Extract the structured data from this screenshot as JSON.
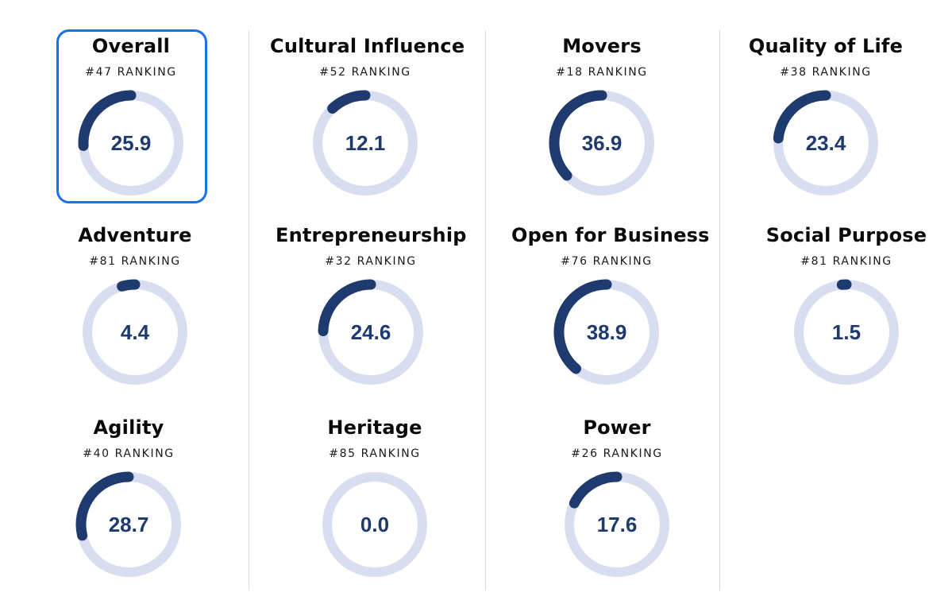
{
  "colors": {
    "track": "#d8deef",
    "arc": "#1e3a6e",
    "value_text": "#1e3a6e",
    "selected_border": "#1d6fe8",
    "divider": "#d9d9d9"
  },
  "cards": [
    {
      "title": "Overall",
      "rank": "#47 RANKING",
      "value": "25.9",
      "fill": 0.259,
      "selected": true
    },
    {
      "title": "Cultural Influence",
      "rank": "#52 RANKING",
      "value": "12.1",
      "fill": 0.121
    },
    {
      "title": "Movers",
      "rank": "#18 RANKING",
      "value": "36.9",
      "fill": 0.369
    },
    {
      "title": "Quality of Life",
      "rank": "#38 RANKING",
      "value": "23.4",
      "fill": 0.234
    },
    {
      "title": "Adventure",
      "rank": "#81 RANKING",
      "value": "4.4",
      "fill": 0.044
    },
    {
      "title": "Entrepreneurship",
      "rank": "#32 RANKING",
      "value": "24.6",
      "fill": 0.246
    },
    {
      "title": "Open for Business",
      "rank": "#76 RANKING",
      "value": "38.9",
      "fill": 0.389
    },
    {
      "title": "Social Purpose",
      "rank": "#81 RANKING",
      "value": "1.5",
      "fill": 0.015
    },
    {
      "title": "Agility",
      "rank": "#40 RANKING",
      "value": "28.7",
      "fill": 0.287
    },
    {
      "title": "Heritage",
      "rank": "#85 RANKING",
      "value": "0.0",
      "fill": 0.0
    },
    {
      "title": "Power",
      "rank": "#26 RANKING",
      "value": "17.6",
      "fill": 0.176
    }
  ]
}
